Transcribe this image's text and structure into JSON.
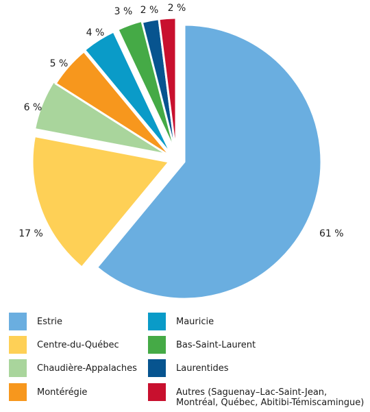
{
  "chart_data": {
    "type": "pie",
    "slices": [
      {
        "label": "Estrie",
        "value": 61,
        "value_label": "61 %",
        "color": "#6aaee0"
      },
      {
        "label": "Centre-du-Québec",
        "value": 17,
        "value_label": "17 %",
        "color": "#fed056"
      },
      {
        "label": "Chaudière-Appalaches",
        "value": 6,
        "value_label": "6 %",
        "color": "#a9d59c"
      },
      {
        "label": "Montérégie",
        "value": 5,
        "value_label": "5 %",
        "color": "#f7971d"
      },
      {
        "label": "Mauricie",
        "value": 4,
        "value_label": "4 %",
        "color": "#0a9bc8"
      },
      {
        "label": "Bas-Saint-Laurent",
        "value": 3,
        "value_label": "3 %",
        "color": "#45aa46"
      },
      {
        "label": "Laurentides",
        "value": 2,
        "value_label": "2 %",
        "color": "#07548f"
      },
      {
        "label": "Autres (Saguenay–Lac-Saint-Jean,\nMontréal, Québec, Abitibi-Témiscamingue)",
        "value": 2,
        "value_label": "2 %",
        "color": "#c8102e"
      }
    ],
    "legend_position": "bottom"
  },
  "legend": {
    "left": [
      {
        "label": "Estrie",
        "color": "#6aaee0"
      },
      {
        "label": "Centre-du-Québec",
        "color": "#fed056"
      },
      {
        "label": "Chaudière-Appalaches",
        "color": "#a9d59c"
      },
      {
        "label": "Montérégie",
        "color": "#f7971d"
      }
    ],
    "right": [
      {
        "label": "Mauricie",
        "color": "#0a9bc8"
      },
      {
        "label": "Bas-Saint-Laurent",
        "color": "#45aa46"
      },
      {
        "label": "Laurentides",
        "color": "#07548f"
      },
      {
        "label": "Autres (Saguenay–Lac-Saint-Jean,\nMontréal, Québec, Abitibi-Témiscamingue)",
        "color": "#c8102e"
      }
    ]
  }
}
